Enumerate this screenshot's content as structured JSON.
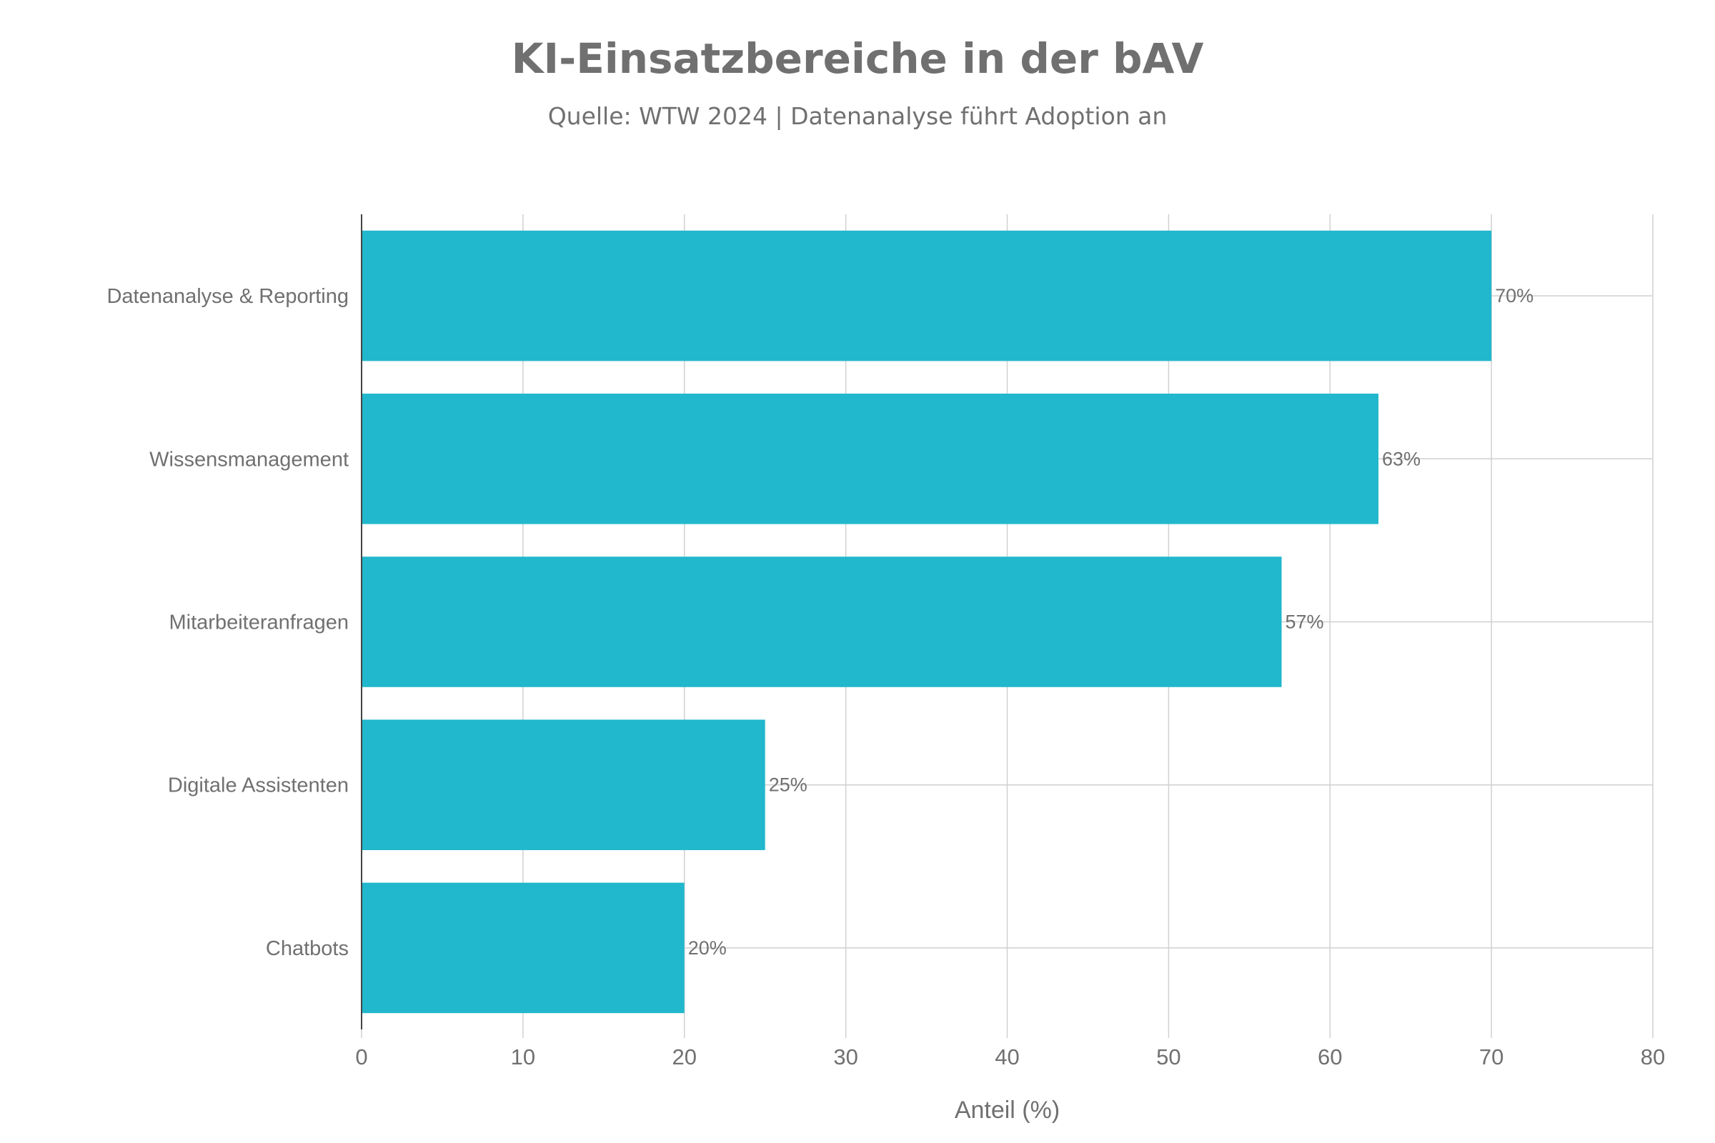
{
  "chart_data": {
    "type": "bar",
    "orientation": "horizontal",
    "title": "KI-Einsatzbereiche in der bAV",
    "subtitle": "Quelle: WTW 2024 | Datenanalyse führt Adoption an",
    "categories": [
      "Datenanalyse & Reporting",
      "Wissensmanagement",
      "Mitarbeiteranfragen",
      "Digitale Assistenten",
      "Chatbots"
    ],
    "values": [
      70,
      63,
      57,
      25,
      20
    ],
    "data_labels": [
      "70%",
      "63%",
      "57%",
      "25%",
      "20%"
    ],
    "xlabel": "Anteil (%)",
    "ylabel": "",
    "xlim": [
      0,
      80
    ],
    "xticks": [
      "0",
      "10",
      "20",
      "30",
      "40",
      "50",
      "60",
      "70",
      "80"
    ],
    "grid": true,
    "bar_color": "#21b7cc",
    "text_color": "#707070"
  }
}
